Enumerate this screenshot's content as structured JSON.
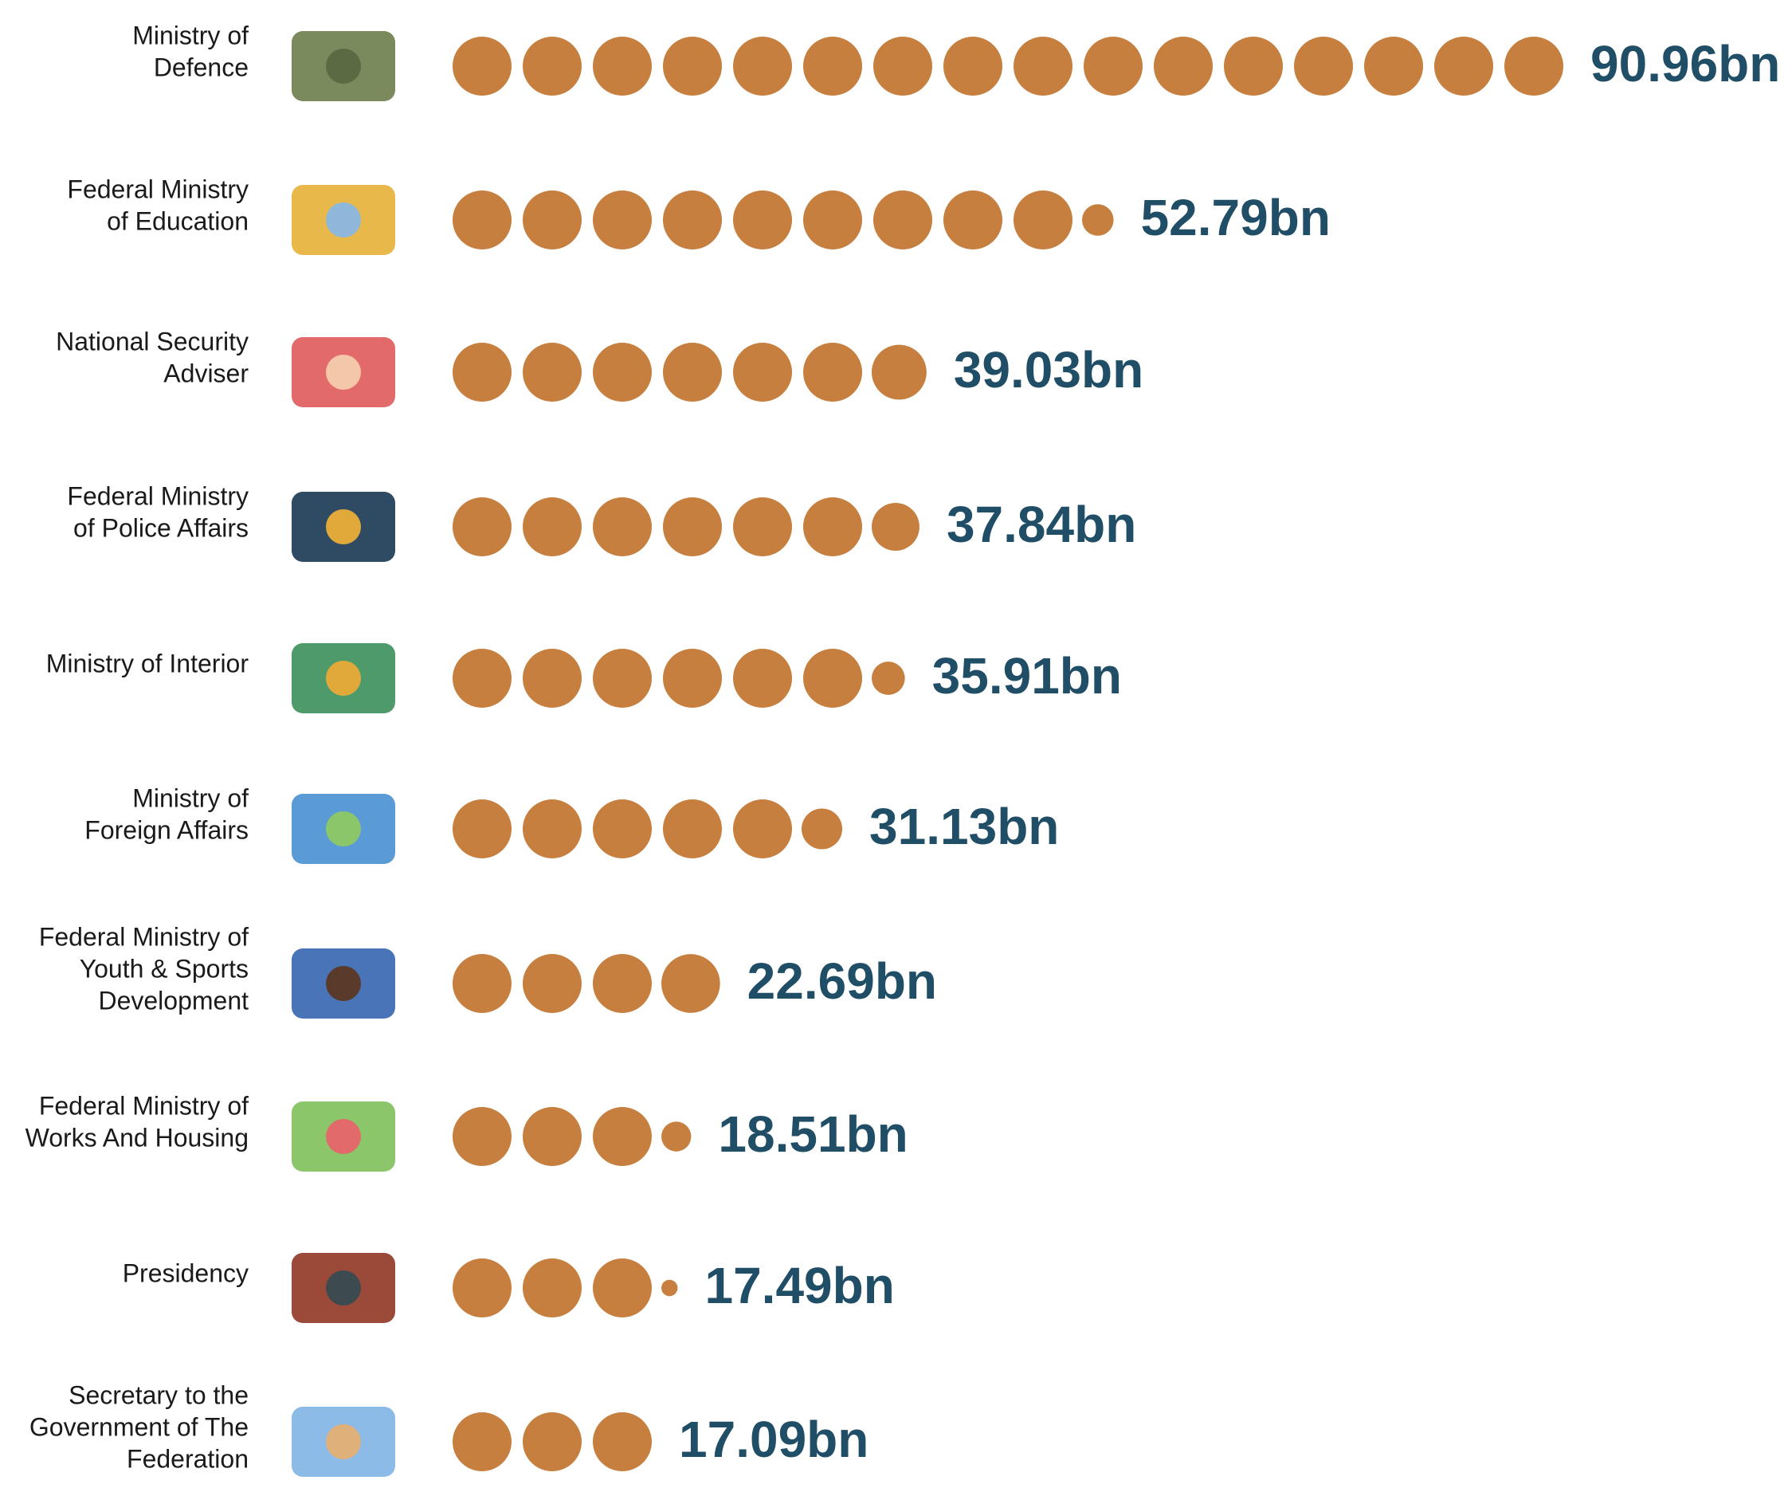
{
  "chart_data": {
    "type": "pictograph",
    "categories": [
      [
        "Ministry of",
        "Defence"
      ],
      [
        "Federal Ministry",
        "of Education"
      ],
      [
        "National Security",
        "Adviser"
      ],
      [
        "Federal Ministry",
        "of Police Affairs"
      ],
      [
        "Ministry of Interior"
      ],
      [
        "Ministry of",
        "Foreign Affairs"
      ],
      [
        "Federal Ministry of",
        "Youth & Sports",
        "Development"
      ],
      [
        "Federal Ministry of",
        "Works And Housing"
      ],
      [
        "Presidency"
      ],
      [
        "Secretary to the",
        "Government of The",
        "Federation"
      ]
    ],
    "values": [
      90.96,
      52.79,
      39.03,
      37.84,
      35.91,
      31.13,
      22.69,
      18.51,
      17.49,
      17.09
    ],
    "value_labels": [
      "90.96bn",
      "52.79bn",
      "39.03bn",
      "37.84bn",
      "35.91bn",
      "31.13bn",
      "22.69bn",
      "18.51bn",
      "17.49bn",
      "17.09bn"
    ],
    "color": "#c67f3e"
  }
}
